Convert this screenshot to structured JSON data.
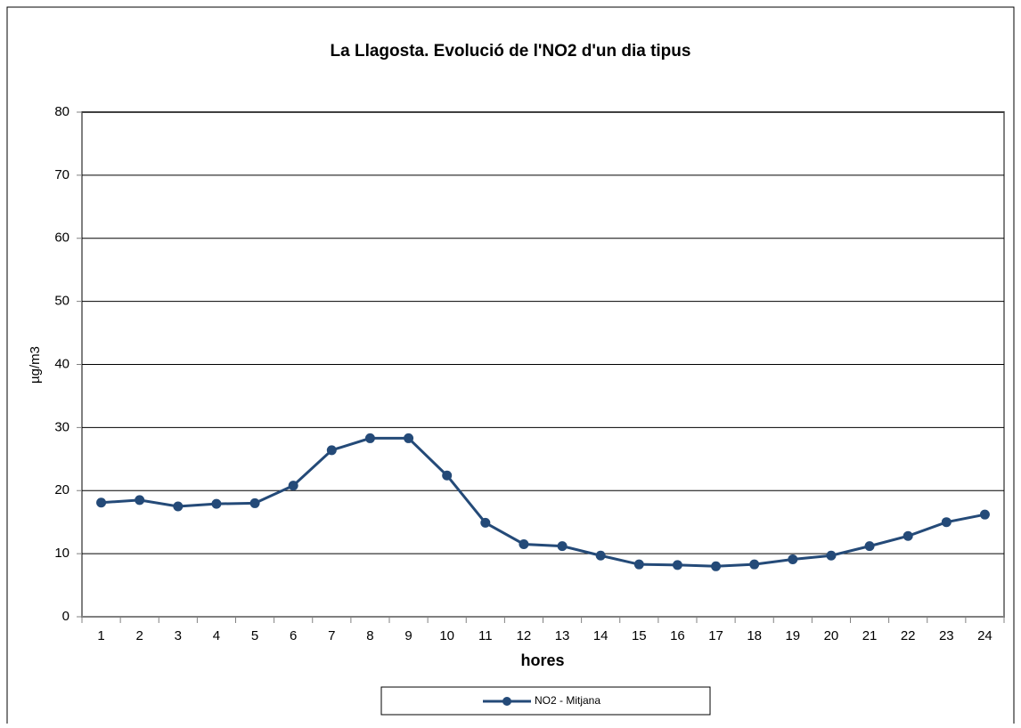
{
  "chart_data": {
    "type": "line",
    "title": "La Llagosta. Evolució de l'NO2 d'un dia tipus",
    "x_label": "hores",
    "y_label": "µg/m3",
    "categories": [
      "1",
      "2",
      "3",
      "4",
      "5",
      "6",
      "7",
      "8",
      "9",
      "10",
      "11",
      "12",
      "13",
      "14",
      "15",
      "16",
      "17",
      "18",
      "19",
      "20",
      "21",
      "22",
      "23",
      "24"
    ],
    "series": [
      {
        "name": "NO2 - Mitjana",
        "color": "#244a78",
        "values": [
          18.1,
          18.5,
          17.5,
          17.9,
          18.0,
          20.8,
          26.4,
          28.3,
          28.3,
          22.4,
          14.9,
          11.5,
          11.2,
          9.7,
          8.3,
          8.2,
          8.0,
          8.3,
          9.1,
          9.7,
          11.2,
          12.8,
          15.0,
          16.2
        ]
      }
    ],
    "ylim": [
      0,
      80
    ],
    "yticks": [
      0,
      10,
      20,
      30,
      40,
      50,
      60,
      70,
      80
    ],
    "grid": true,
    "legend": "bottom"
  }
}
